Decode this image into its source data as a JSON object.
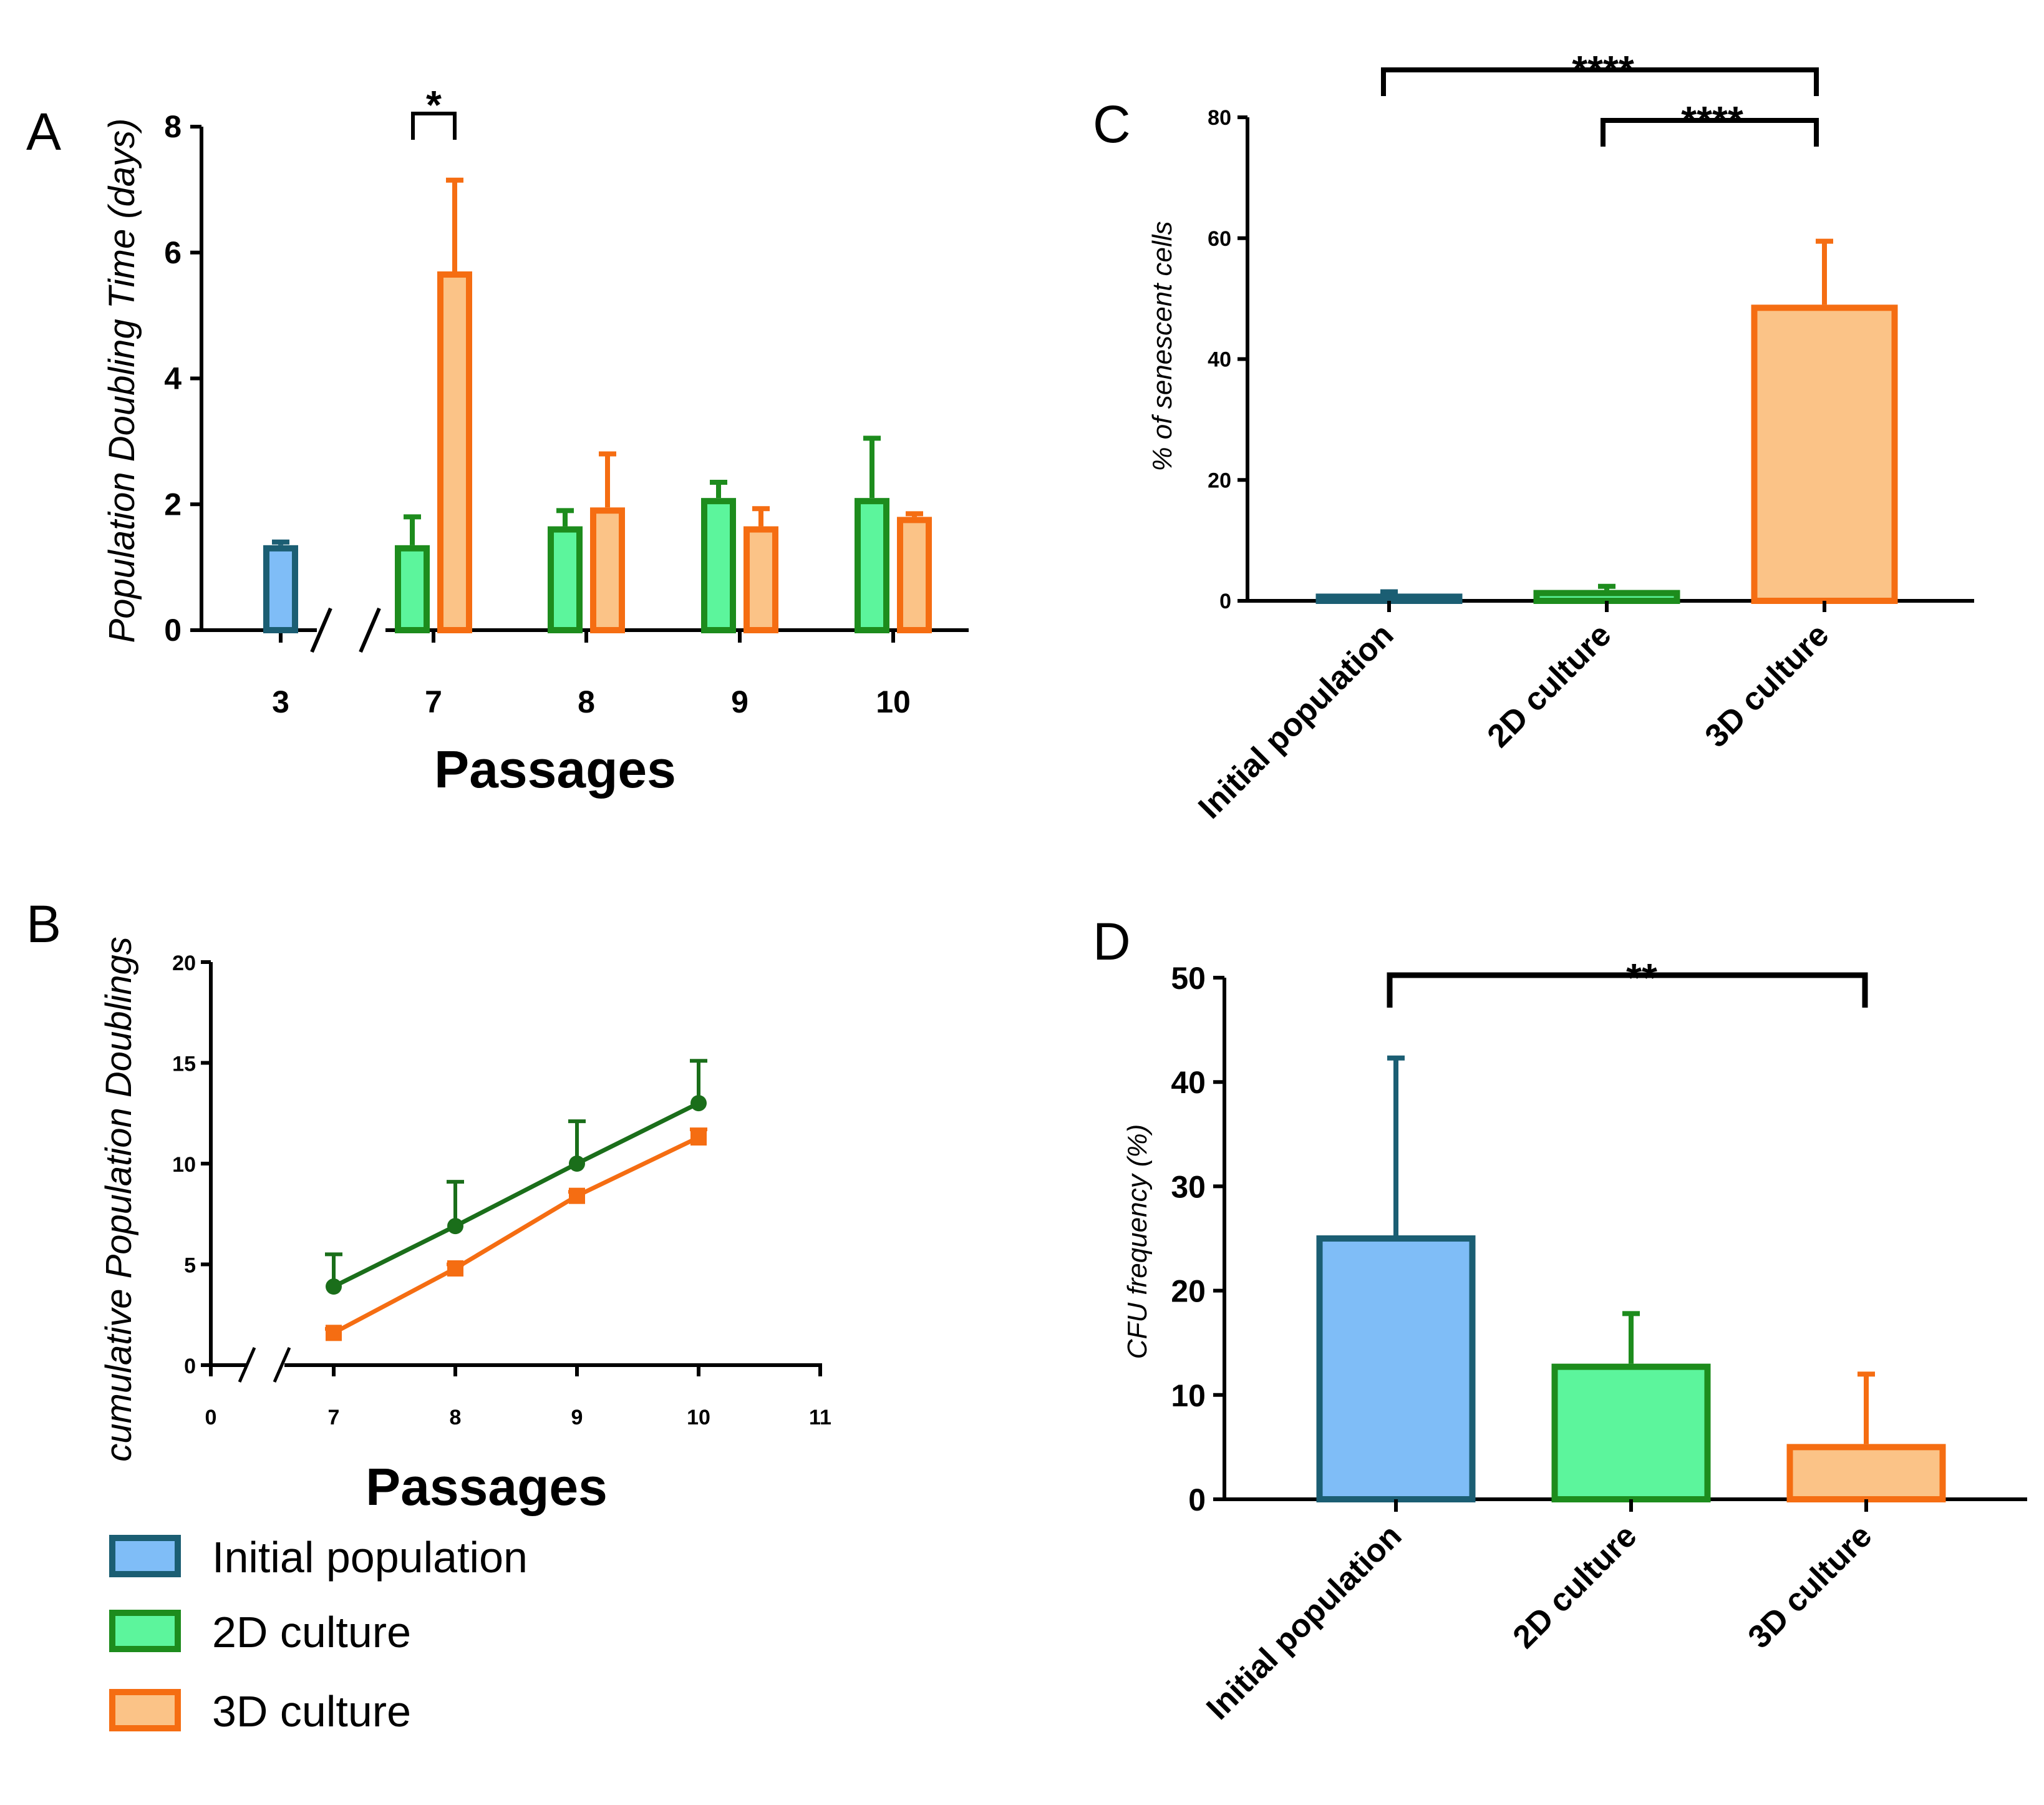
{
  "legend": [
    {
      "label": "Initial population",
      "fill": "#7fbdf7",
      "stroke": "#1b5e73"
    },
    {
      "label": "2D culture",
      "fill": "#5cf59c",
      "stroke": "#1d8c1d"
    },
    {
      "label": "3D culture",
      "fill": "#fbc387",
      "stroke": "#f56d12"
    }
  ],
  "chart_data": [
    {
      "panel": "A",
      "type": "bar",
      "xlabel": "Passages",
      "ylabel": "Population Doubling Time (days)",
      "ylim": [
        0,
        8
      ],
      "yticks": [
        0,
        2,
        4,
        6,
        8
      ],
      "categories": [
        "3",
        "7",
        "8",
        "9",
        "10"
      ],
      "series": [
        {
          "name": "Initial population",
          "values": [
            1.35,
            null,
            null,
            null,
            null
          ],
          "errors": [
            0.05,
            null,
            null,
            null,
            null
          ]
        },
        {
          "name": "2D culture",
          "values": [
            null,
            1.35,
            1.65,
            2.1,
            2.1
          ],
          "errors": [
            null,
            0.45,
            0.25,
            0.25,
            0.95
          ]
        },
        {
          "name": "3D culture",
          "values": [
            null,
            5.7,
            1.95,
            1.65,
            1.8
          ],
          "errors": [
            null,
            1.45,
            0.85,
            0.28,
            0.05
          ]
        }
      ],
      "annotations": [
        {
          "text": "*",
          "category": "7"
        }
      ]
    },
    {
      "panel": "B",
      "type": "line",
      "xlabel": "Passages",
      "ylabel": "cumulative Population Doublings",
      "ylim": [
        0,
        20
      ],
      "yticks": [
        0,
        5,
        10,
        15,
        20
      ],
      "xticks": [
        "0",
        "7",
        "8",
        "9",
        "10",
        "11"
      ],
      "x": [
        7,
        8,
        9,
        10
      ],
      "series": [
        {
          "name": "2D culture",
          "values": [
            3.9,
            6.9,
            10.0,
            13.0
          ],
          "errors": [
            1.6,
            2.2,
            2.1,
            2.1
          ]
        },
        {
          "name": "3D culture",
          "values": [
            1.6,
            4.8,
            8.4,
            11.3
          ],
          "errors": [
            0.2,
            0.2,
            0.2,
            0.4
          ]
        }
      ]
    },
    {
      "panel": "C",
      "type": "bar",
      "xlabel": "",
      "ylabel": "% of senescent cells",
      "ylim": [
        0,
        80
      ],
      "yticks": [
        0,
        20,
        40,
        60,
        80
      ],
      "categories": [
        "Initial population",
        "2D culture",
        "3D culture"
      ],
      "values": [
        1.2,
        1.8,
        49
      ],
      "errors": [
        0.3,
        0.6,
        10.5
      ],
      "annotations": [
        {
          "text": "****",
          "from": "Initial population",
          "to": "3D culture"
        },
        {
          "text": "****",
          "from": "2D culture",
          "to": "3D culture"
        }
      ]
    },
    {
      "panel": "D",
      "type": "bar",
      "xlabel": "",
      "ylabel": "CFU frequency (%)",
      "ylim": [
        0,
        50
      ],
      "yticks": [
        0,
        10,
        20,
        30,
        40,
        50
      ],
      "categories": [
        "Initial population",
        "2D culture",
        "3D culture"
      ],
      "values": [
        25.3,
        13,
        5.3
      ],
      "errors": [
        17,
        4.8,
        6.7
      ],
      "annotations": [
        {
          "text": "**",
          "from": "Initial population",
          "to": "3D culture"
        }
      ]
    }
  ]
}
